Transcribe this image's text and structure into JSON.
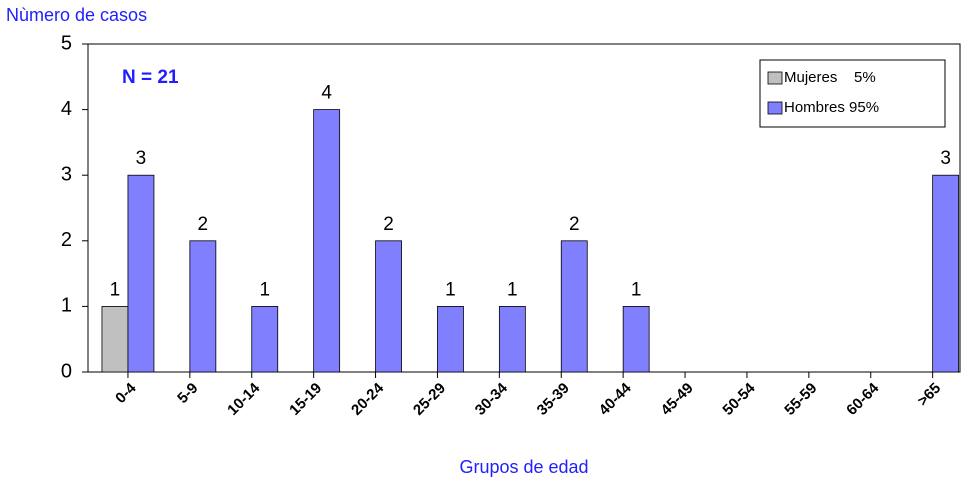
{
  "chart_data": {
    "type": "bar",
    "y_label": "Nùmero de casos",
    "x_label": "Grupos de edad",
    "annotation": "N = 21",
    "categories": [
      "0-4",
      "5-9",
      "10-14",
      "15-19",
      "20-24",
      "25-29",
      "30-34",
      "35-39",
      "40-44",
      "45-49",
      "50-54",
      "55-59",
      "60-64",
      ">65"
    ],
    "series": [
      {
        "name": "Mujeres    5%",
        "color": "#c0c0c0",
        "values": [
          1,
          0,
          0,
          0,
          0,
          0,
          0,
          0,
          0,
          0,
          0,
          0,
          0,
          0
        ]
      },
      {
        "name": "Hombres 95%",
        "color": "#8080ff",
        "values": [
          3,
          2,
          1,
          4,
          2,
          1,
          1,
          2,
          1,
          0,
          0,
          0,
          0,
          3
        ]
      }
    ],
    "ylim": [
      0,
      5
    ],
    "yticks": [
      0,
      1,
      2,
      3,
      4,
      5
    ],
    "grid": false,
    "legend": "top-right"
  }
}
